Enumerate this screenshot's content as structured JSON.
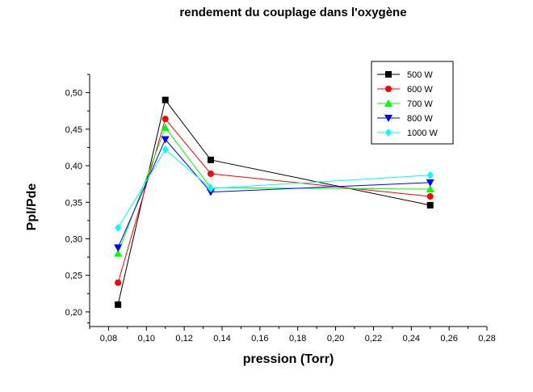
{
  "chart_data": {
    "type": "line",
    "title": "rendement du couplage dans l'oxygène",
    "xlabel": "pression (Torr)",
    "ylabel": "Ppl/Pde",
    "x": [
      0.085,
      0.11,
      0.134,
      0.25
    ],
    "xlim": [
      0.07,
      0.28
    ],
    "ylim": [
      0.18,
      0.525
    ],
    "x_ticks": [
      "0,08",
      "0,10",
      "0,12",
      "0,14",
      "0,16",
      "0,18",
      "0,20",
      "0,22",
      "0,24",
      "0,26",
      "0,28"
    ],
    "x_tick_values": [
      0.08,
      0.1,
      0.12,
      0.14,
      0.16,
      0.18,
      0.2,
      0.22,
      0.24,
      0.26,
      0.28
    ],
    "y_ticks": [
      "0,20",
      "0,25",
      "0,30",
      "0,35",
      "0,40",
      "0,45",
      "0,50"
    ],
    "y_tick_values": [
      0.2,
      0.25,
      0.3,
      0.35,
      0.4,
      0.45,
      0.5
    ],
    "grid": false,
    "legend_position": "top-right",
    "series": [
      {
        "name": "500 W",
        "values": [
          0.21,
          0.49,
          0.408,
          0.346
        ],
        "color": "#000000",
        "marker": "square"
      },
      {
        "name": "600 W",
        "values": [
          0.24,
          0.464,
          0.389,
          0.358
        ],
        "color": "#ff0000",
        "marker": "circle"
      },
      {
        "name": "700 W",
        "values": [
          0.28,
          0.452,
          0.37,
          0.368
        ],
        "color": "#00ff00",
        "marker": "triangle-up"
      },
      {
        "name": "800 W",
        "values": [
          0.288,
          0.436,
          0.364,
          0.377
        ],
        "color": "#0000ff",
        "marker": "triangle-down"
      },
      {
        "name": "1000 W",
        "values": [
          0.315,
          0.422,
          0.369,
          0.387
        ],
        "color": "#00ffff",
        "marker": "diamond"
      }
    ]
  }
}
